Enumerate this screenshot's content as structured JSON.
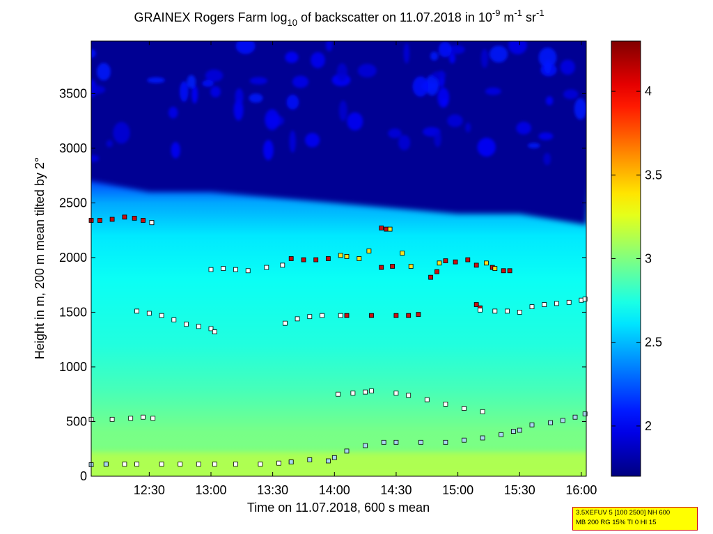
{
  "chart_data": {
    "type": "heatmap",
    "title": {
      "part1": "GRAINEX Rogers Farm log",
      "sub": "10",
      "part2": " of backscatter on 11.07.2018 in 10",
      "sup1": "-9",
      "part3": " m",
      "sup2": "-1",
      "part4": " sr",
      "sup3": "-1"
    },
    "xlabel": "Time on 11.07.2018, 600 s mean",
    "ylabel": "Height in m, 200 m mean tilted by 2°",
    "x_range_hours": [
      12.03,
      16.04
    ],
    "x_ticks": [
      {
        "label": "12:30",
        "value": 12.5
      },
      {
        "label": "13:00",
        "value": 13.0
      },
      {
        "label": "13:30",
        "value": 13.5
      },
      {
        "label": "14:00",
        "value": 14.0
      },
      {
        "label": "14:30",
        "value": 14.5
      },
      {
        "label": "15:00",
        "value": 15.0
      },
      {
        "label": "15:30",
        "value": 15.5
      },
      {
        "label": "16:00",
        "value": 16.0
      }
    ],
    "ylim": [
      0,
      3980
    ],
    "y_ticks": [
      0,
      500,
      1000,
      1500,
      2000,
      2500,
      3000,
      3500
    ],
    "colorbar": {
      "range": [
        1.7,
        4.3
      ],
      "ticks": [
        2,
        2.5,
        3,
        3.5,
        4
      ],
      "colormap": "jet"
    },
    "field_description": {
      "surface_value": 3.05,
      "layer_value": 2.7,
      "free_troposphere_value": 1.75,
      "top_of_layer_height": [
        2700,
        2600,
        2600,
        2550,
        2500,
        2450,
        2400,
        2400,
        2300
      ],
      "top_of_layer_times": [
        12.03,
        12.5,
        13.0,
        13.5,
        14.0,
        14.5,
        15.0,
        15.5,
        16.04
      ]
    },
    "series": [
      {
        "values": [
          [
            12.03,
            2340
          ],
          [
            12.1,
            2340
          ],
          [
            12.2,
            2350
          ],
          [
            12.3,
            2370
          ],
          [
            12.38,
            2360
          ],
          [
            12.45,
            2340
          ],
          [
            12.52,
            2320
          ],
          [
            13.65,
            1990
          ],
          [
            13.75,
            1980
          ],
          [
            13.85,
            1980
          ],
          [
            13.95,
            1990
          ],
          [
            14.38,
            1910
          ],
          [
            14.47,
            1920
          ],
          [
            14.78,
            1820
          ],
          [
            14.83,
            1870
          ],
          [
            14.9,
            1970
          ],
          [
            14.98,
            1960
          ],
          [
            15.08,
            1980
          ],
          [
            15.15,
            1930
          ],
          [
            15.28,
            1910
          ],
          [
            15.37,
            1880
          ],
          [
            15.42,
            1880
          ],
          [
            15.15,
            1570
          ],
          [
            15.18,
            1540
          ],
          [
            14.1,
            1470
          ],
          [
            14.3,
            1470
          ],
          [
            14.5,
            1470
          ],
          [
            14.6,
            1470
          ],
          [
            14.68,
            1480
          ],
          [
            14.38,
            2270
          ],
          [
            14.42,
            2260
          ]
        ]
      },
      {
        "values": [
          [
            14.05,
            2020
          ],
          [
            14.1,
            2010
          ],
          [
            14.2,
            1990
          ],
          [
            14.28,
            2060
          ],
          [
            14.55,
            2040
          ],
          [
            14.62,
            1920
          ],
          [
            14.85,
            1950
          ],
          [
            15.23,
            1950
          ],
          [
            15.3,
            1900
          ],
          [
            14.45,
            2260
          ]
        ]
      },
      {
        "values": [
          [
            12.52,
            2320
          ],
          [
            12.03,
            520
          ],
          [
            12.2,
            520
          ],
          [
            12.35,
            530
          ],
          [
            12.45,
            540
          ],
          [
            12.53,
            530
          ],
          [
            12.4,
            1510
          ],
          [
            12.5,
            1490
          ],
          [
            12.6,
            1470
          ],
          [
            12.7,
            1430
          ],
          [
            12.8,
            1390
          ],
          [
            12.9,
            1370
          ],
          [
            13.0,
            1350
          ],
          [
            13.03,
            1320
          ],
          [
            13.0,
            1890
          ],
          [
            13.1,
            1900
          ],
          [
            13.2,
            1890
          ],
          [
            13.3,
            1880
          ],
          [
            13.45,
            1910
          ],
          [
            13.58,
            1930
          ],
          [
            13.6,
            1400
          ],
          [
            13.7,
            1440
          ],
          [
            13.8,
            1460
          ],
          [
            13.9,
            1470
          ],
          [
            14.05,
            1470
          ],
          [
            14.03,
            750
          ],
          [
            14.15,
            760
          ],
          [
            14.25,
            770
          ],
          [
            14.3,
            780
          ],
          [
            14.5,
            760
          ],
          [
            14.6,
            740
          ],
          [
            14.75,
            700
          ],
          [
            14.9,
            660
          ],
          [
            15.05,
            620
          ],
          [
            15.2,
            590
          ],
          [
            12.15,
            110
          ],
          [
            12.3,
            110
          ],
          [
            12.4,
            110
          ],
          [
            12.6,
            110
          ],
          [
            12.75,
            110
          ],
          [
            12.9,
            110
          ],
          [
            13.03,
            110
          ],
          [
            13.2,
            110
          ],
          [
            13.4,
            110
          ],
          [
            13.55,
            120
          ],
          [
            13.65,
            130
          ],
          [
            15.18,
            1520
          ],
          [
            15.3,
            1510
          ],
          [
            15.4,
            1510
          ],
          [
            15.5,
            1500
          ],
          [
            15.6,
            1550
          ],
          [
            15.7,
            1570
          ],
          [
            15.8,
            1580
          ],
          [
            15.9,
            1590
          ],
          [
            16.0,
            1610
          ],
          [
            16.03,
            1620
          ]
        ]
      },
      {
        "values": [
          [
            12.03,
            105
          ],
          [
            12.15,
            110
          ],
          [
            13.65,
            130
          ],
          [
            13.8,
            150
          ],
          [
            13.95,
            140
          ],
          [
            14.0,
            170
          ],
          [
            14.1,
            230
          ],
          [
            14.25,
            280
          ],
          [
            14.4,
            310
          ],
          [
            14.5,
            310
          ],
          [
            14.7,
            310
          ],
          [
            14.9,
            310
          ],
          [
            15.05,
            330
          ],
          [
            15.2,
            350
          ],
          [
            15.35,
            380
          ],
          [
            15.45,
            410
          ],
          [
            15.5,
            420
          ],
          [
            15.6,
            470
          ],
          [
            15.75,
            490
          ],
          [
            15.85,
            510
          ],
          [
            15.95,
            540
          ],
          [
            16.03,
            570
          ]
        ]
      }
    ]
  },
  "parameter_box": {
    "line1": "3.5XEFUV 5 [100 2500] NH 600",
    "line2": "MB 200 RG 15% TI 0 HI 15"
  },
  "colors": {
    "marker_outline": "#000000",
    "param_box_bg": "#ffff00",
    "param_box_border": "#cc0000"
  }
}
